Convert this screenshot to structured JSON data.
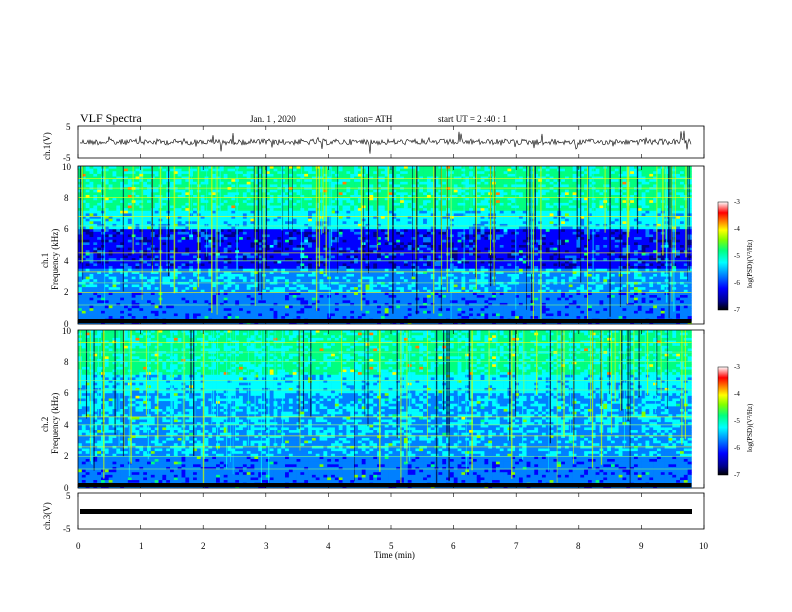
{
  "header": {
    "title": "VLF  Spectra",
    "date": "Jan.  1  , 2020",
    "station": "station= ATH",
    "start": "start  UT  =   2  :40 : 1"
  },
  "chart_data": [
    {
      "id": "ch1_waveform",
      "type": "line",
      "ylabel": "ch.1(V)",
      "ylim": [
        -5,
        5
      ],
      "yticks": [
        "5",
        "-5"
      ],
      "xlim": [
        0,
        10
      ],
      "description_series": "noise waveform near 0 V with spikes"
    },
    {
      "id": "ch1_spectrogram",
      "type": "heatmap",
      "ylabel_line1": "ch.1",
      "ylabel_line2": "Frequency  (kHz)",
      "ylim": [
        0,
        10
      ],
      "yticks": [
        "0",
        "2",
        "4",
        "6",
        "8",
        "10"
      ],
      "xlim": [
        0,
        9.8
      ],
      "colorbar": {
        "label": "log(PSD)(V²/Hz)",
        "range": [
          -7,
          -3
        ],
        "ticks": [
          "-3",
          "-4",
          "-5",
          "-6",
          "-7"
        ]
      }
    },
    {
      "id": "ch2_spectrogram",
      "type": "heatmap",
      "ylabel_line1": "ch.2",
      "ylabel_line2": "Frequency  (kHz)",
      "ylim": [
        0,
        10
      ],
      "yticks": [
        "0",
        "2",
        "4",
        "6",
        "8",
        "10"
      ],
      "xlim": [
        0,
        9.8
      ],
      "colorbar": {
        "label": "log(PSD)(V²/Hz)",
        "range": [
          -7,
          -3
        ],
        "ticks": [
          "-3",
          "-4",
          "-5",
          "-6",
          "-7"
        ]
      }
    },
    {
      "id": "ch3_waveform",
      "type": "line",
      "ylabel": "ch.3(V)",
      "ylim": [
        -5,
        5
      ],
      "yticks": [
        "5",
        "-5"
      ],
      "xlim": [
        0,
        10
      ],
      "series": [
        {
          "values_constant": -2
        }
      ]
    }
  ],
  "xaxis": {
    "label": "Time  (min)",
    "ticks": [
      "0",
      "1",
      "2",
      "3",
      "4",
      "5",
      "6",
      "7",
      "8",
      "9",
      "10"
    ]
  },
  "colors": {
    "colormap": [
      "#000000",
      "#00008b",
      "#0000ff",
      "#0080ff",
      "#00ffff",
      "#00ff80",
      "#80ff00",
      "#ffff00",
      "#ff8000",
      "#ff0000",
      "#ffffff"
    ]
  }
}
